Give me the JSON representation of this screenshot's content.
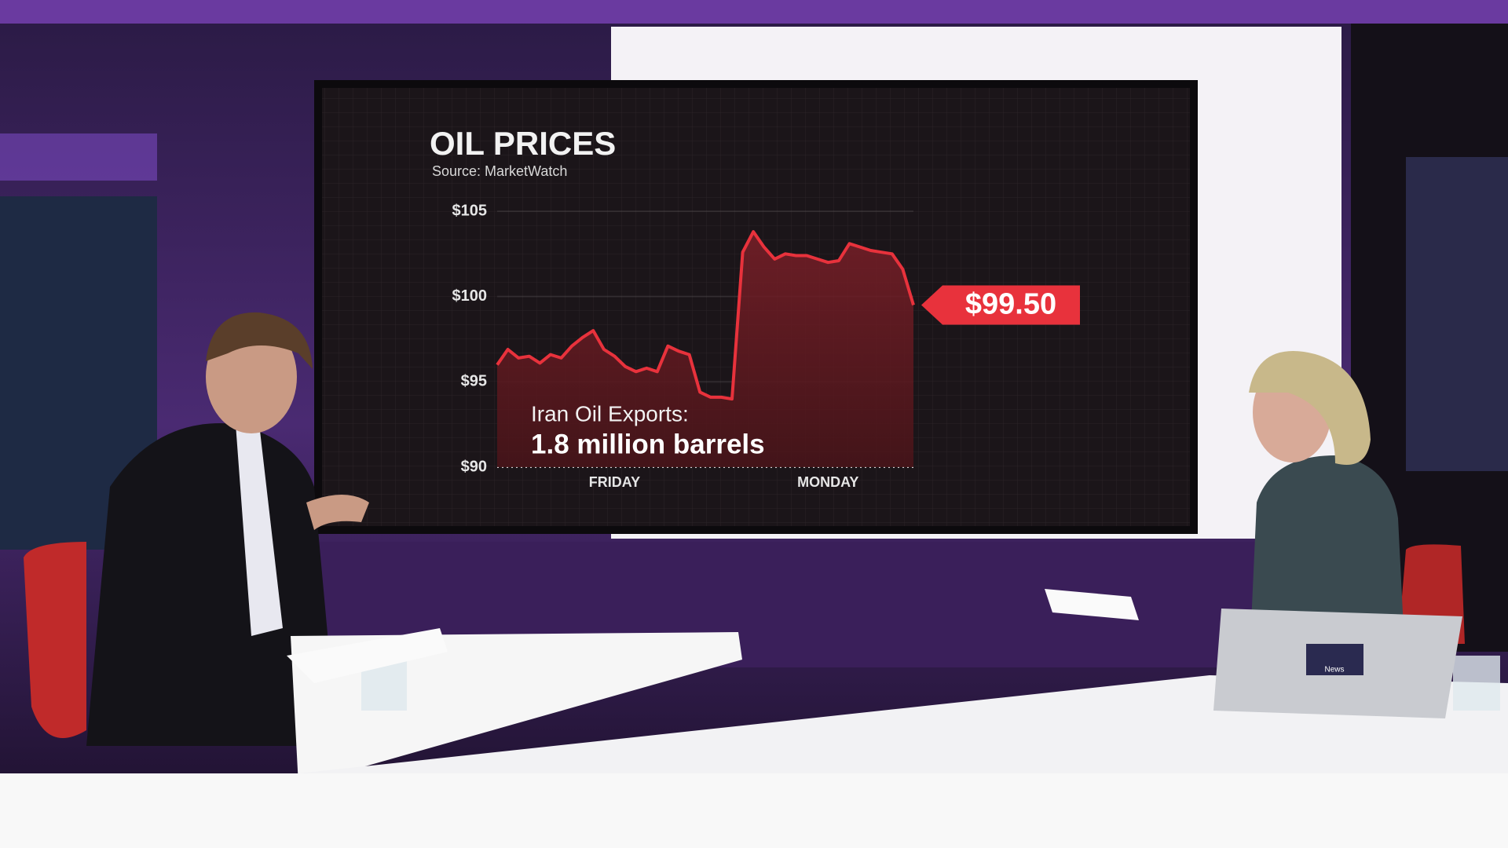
{
  "chart_data": {
    "type": "line",
    "title": "OIL PRICES",
    "subtitle": "Source: MarketWatch",
    "categories": [
      null,
      null,
      null,
      null,
      null,
      null,
      null,
      null,
      null,
      null,
      null,
      "FRIDAY",
      null,
      null,
      null,
      null,
      null,
      null,
      null,
      null,
      null,
      null,
      null,
      null,
      null,
      null,
      null,
      null,
      null,
      null,
      null,
      "MONDAY",
      null,
      null,
      null,
      null,
      null,
      null,
      null,
      null
    ],
    "series": [
      {
        "color": "#e8323c",
        "values": [
          96.0,
          96.9,
          96.4,
          96.5,
          96.1,
          96.6,
          96.4,
          97.1,
          97.6,
          98.0,
          96.9,
          96.5,
          95.9,
          95.6,
          95.8,
          95.6,
          97.1,
          96.8,
          96.6,
          94.4,
          94.1,
          94.1,
          94.0,
          102.6,
          103.8,
          102.9,
          102.2,
          102.5,
          102.4,
          102.4,
          102.2,
          102.0,
          102.1,
          103.1,
          102.9,
          102.7,
          102.6,
          102.5,
          101.6,
          99.5
        ]
      }
    ],
    "ylim": [
      90,
      105
    ],
    "yticks": [
      {
        "value": 105,
        "label": "$105"
      },
      {
        "value": 100,
        "label": "$100"
      },
      {
        "value": 95,
        "label": "$95"
      },
      {
        "value": 90,
        "label": "$90"
      }
    ],
    "grid": true,
    "callout": "$99.50",
    "annotations": [
      "Iran Oil Exports:",
      "1.8 million barrels"
    ]
  },
  "laptop_logo": "News"
}
